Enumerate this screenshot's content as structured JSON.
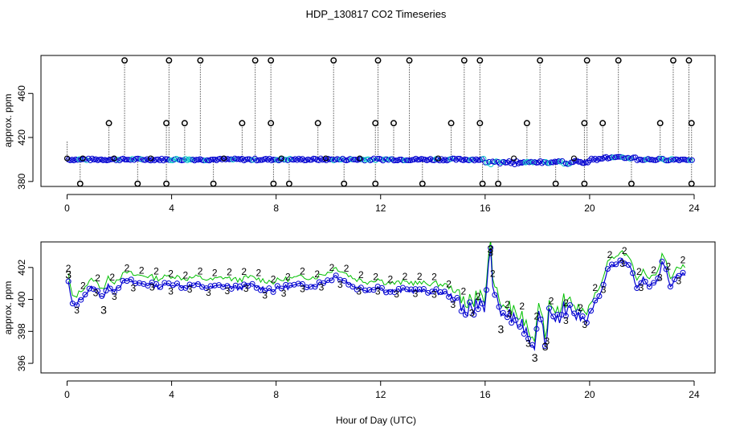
{
  "chart_data": {
    "title": "HDP_130817  CO2 Timeseries",
    "xlabel": "Hour of Day (UTC)",
    "colors": {
      "raw": "#000000",
      "series1": "#00c5c5",
      "series2": "#00c000",
      "series3": "#0000d0"
    },
    "panels": [
      {
        "type": "scatter",
        "ylabel": "approx. ppm",
        "xlim": [
          -1.0,
          24.8
        ],
        "ylim": [
          375.5,
          494.5
        ],
        "xticks": [
          0,
          4,
          8,
          12,
          16,
          20,
          24
        ],
        "yticks": [
          380,
          420,
          460
        ],
        "baseline_ppm": 400,
        "high_spikes_x": [
          2.2,
          3.9,
          5.1,
          7.2,
          7.8,
          10.2,
          11.9,
          13.1,
          15.2,
          15.8,
          18.1,
          19.9,
          21.1,
          23.2,
          23.8
        ],
        "mid_spikes_x": [
          1.6,
          3.8,
          4.5,
          6.7,
          7.8,
          9.6,
          11.8,
          12.5,
          14.7,
          15.8,
          17.6,
          19.8,
          20.5,
          22.7,
          23.9
        ],
        "low_spikes_x": [
          0.5,
          2.7,
          3.8,
          5.6,
          7.9,
          8.5,
          10.6,
          11.8,
          13.6,
          15.9,
          16.5,
          18.7,
          19.8,
          21.6,
          23.9
        ],
        "spike_levels_ppm": {
          "high": 490,
          "mid": 433,
          "low": 378
        }
      },
      {
        "type": "line",
        "ylabel": "approx. ppm",
        "xlim": [
          -1.0,
          24.8
        ],
        "ylim": [
          395.4,
          403.6
        ],
        "xticks": [
          0,
          4,
          8,
          12,
          16,
          20,
          24
        ],
        "yticks": [
          396,
          398,
          400,
          402
        ],
        "labels": [
          "2",
          "3"
        ],
        "series3_profile": {
          "x": [
            0.0,
            0.1,
            0.2,
            0.4,
            0.6,
            0.8,
            1.0,
            1.2,
            1.4,
            1.6,
            1.8,
            2.0,
            2.3,
            2.6,
            3.0,
            3.5,
            4.0,
            4.5,
            5.0,
            5.5,
            6.0,
            6.5,
            7.0,
            7.5,
            7.9,
            8.1,
            8.5,
            9.0,
            9.5,
            10.0,
            10.3,
            10.6,
            11.0,
            11.5,
            11.9,
            12.1,
            12.5,
            13.0,
            13.5,
            14.0,
            14.5,
            14.8,
            15.2,
            15.6,
            16.0,
            16.1,
            16.2,
            16.35,
            16.5,
            16.7,
            17.0,
            17.3,
            17.6,
            17.8,
            17.9,
            18.0,
            18.2,
            18.3,
            18.5,
            18.8,
            19.0,
            19.3,
            19.6,
            19.9,
            20.2,
            20.5,
            20.7,
            21.0,
            21.3,
            21.6,
            21.8,
            22.0,
            22.3,
            22.6,
            22.8,
            23.1,
            23.4,
            23.7
          ],
          "y": [
            401.5,
            400.6,
            399.6,
            399.8,
            400.2,
            400.5,
            400.8,
            400.4,
            400.2,
            400.9,
            400.6,
            400.9,
            401.2,
            401.0,
            401.0,
            400.8,
            401.0,
            400.8,
            400.9,
            400.7,
            400.9,
            400.7,
            400.9,
            400.7,
            400.6,
            400.7,
            400.8,
            400.9,
            400.9,
            401.2,
            401.5,
            401.2,
            400.8,
            400.6,
            400.8,
            400.6,
            400.5,
            400.6,
            400.5,
            400.5,
            400.4,
            400.1,
            399.6,
            399.4,
            399.8,
            401.5,
            403.1,
            399.8,
            399.6,
            398.6,
            398.9,
            398.6,
            398.3,
            397.2,
            396.3,
            398.6,
            398.9,
            397.4,
            399.5,
            398.8,
            399.6,
            399.2,
            399.0,
            398.7,
            399.8,
            400.6,
            401.8,
            402.3,
            402.5,
            401.8,
            400.5,
            401.3,
            400.9,
            401.3,
            402.4,
            400.9,
            401.6,
            401.5
          ]
        },
        "series2_offset_ppm": 0.5
      }
    ]
  }
}
